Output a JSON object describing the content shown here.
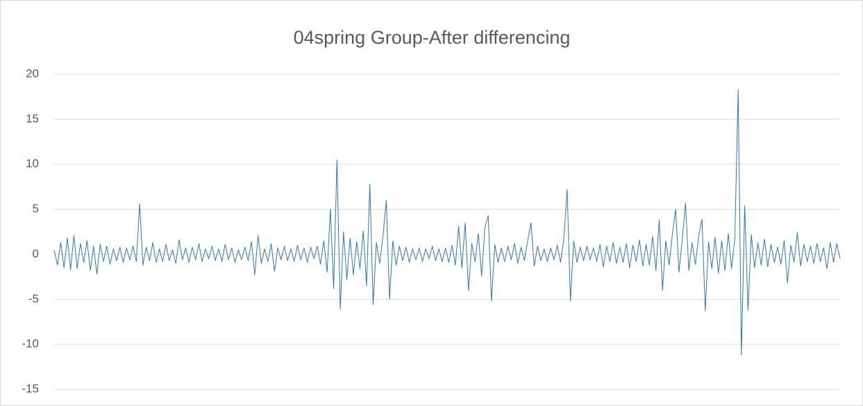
{
  "chart_data": {
    "type": "line",
    "title": "04spring Group-After differencing",
    "color": "#2e75b6",
    "ylim": [
      -15,
      20
    ],
    "yticks": [
      -15,
      -10,
      -5,
      0,
      5,
      10,
      15,
      20
    ],
    "grid": true,
    "values": [
      0.5,
      -1.2,
      1.3,
      -1.5,
      1.8,
      -1.7,
      2.1,
      -1.6,
      1.2,
      -0.9,
      1.5,
      -1.8,
      0.9,
      -2.2,
      1.1,
      -0.8,
      0.9,
      -1.1,
      0.6,
      -0.7,
      0.8,
      -0.9,
      0.7,
      -0.6,
      0.9,
      -0.8,
      5.6,
      -1.2,
      0.8,
      -0.7,
      1.3,
      -0.9,
      0.6,
      -0.8,
      1.1,
      -0.7,
      0.5,
      -1.0,
      1.6,
      -0.6,
      0.7,
      -0.9,
      0.8,
      -0.6,
      1.2,
      -0.8,
      0.6,
      -0.5,
      0.9,
      -0.7,
      0.6,
      -0.8,
      1.1,
      -0.6,
      0.7,
      -0.9,
      0.5,
      -0.6,
      0.8,
      -0.7,
      1.4,
      -2.3,
      2.1,
      -1.0,
      0.6,
      -0.8,
      1.2,
      -1.9,
      0.7,
      -0.6,
      0.9,
      -0.7,
      0.6,
      -0.8,
      1.0,
      -0.6,
      0.7,
      -0.9,
      0.8,
      -0.5,
      0.9,
      -1.1,
      1.5,
      -2.0,
      5.0,
      -3.8,
      10.5,
      -6.1,
      2.5,
      -2.8,
      1.8,
      -2.3,
      1.4,
      -1.6,
      2.6,
      -3.5,
      7.8,
      -5.6,
      1.3,
      -1.0,
      2.0,
      6.0,
      -5.0,
      1.5,
      -1.2,
      0.9,
      -0.7,
      0.8,
      -0.9,
      0.6,
      -0.6,
      0.7,
      -0.8,
      0.6,
      -0.5,
      0.9,
      -0.7,
      0.6,
      -0.8,
      0.7,
      -0.9,
      1.0,
      -1.2,
      3.1,
      -1.5,
      3.5,
      -4.0,
      1.2,
      -0.8,
      2.3,
      -2.4,
      3.0,
      4.3,
      -5.2,
      1.1,
      -0.9,
      0.7,
      -0.8,
      0.9,
      -0.6,
      1.2,
      -1.0,
      0.8,
      -0.7,
      1.5,
      3.5,
      -1.3,
      0.9,
      -0.7,
      0.6,
      -0.8,
      0.7,
      -0.6,
      1.0,
      -0.9,
      1.8,
      7.2,
      -5.2,
      1.5,
      -0.9,
      0.8,
      -0.7,
      0.9,
      -0.6,
      0.7,
      -0.8,
      1.1,
      -1.4,
      0.9,
      -0.8,
      1.3,
      -1.0,
      0.8,
      -0.9,
      1.2,
      -1.5,
      1.0,
      -0.8,
      1.6,
      -1.3,
      1.1,
      -1.2,
      2.0,
      -1.8,
      3.8,
      -4.0,
      1.5,
      -1.2,
      2.2,
      5.0,
      -2.0,
      1.6,
      5.7,
      -1.8,
      1.3,
      -1.1,
      2.0,
      3.9,
      -6.3,
      1.4,
      -1.6,
      1.9,
      -2.1,
      1.5,
      -1.8,
      2.3,
      -1.6,
      1.8,
      18.3,
      -11.2,
      5.4,
      -6.2,
      2.2,
      -1.5,
      1.3,
      -1.2,
      1.7,
      -1.4,
      1.1,
      -0.9,
      0.8,
      -1.1,
      1.5,
      -3.2,
      1.0,
      -0.9,
      2.4,
      -1.3,
      1.1,
      -0.8,
      0.9,
      -1.0,
      1.2,
      -0.8,
      0.7,
      -1.6,
      1.3,
      -0.9,
      1.2,
      -0.5
    ]
  }
}
